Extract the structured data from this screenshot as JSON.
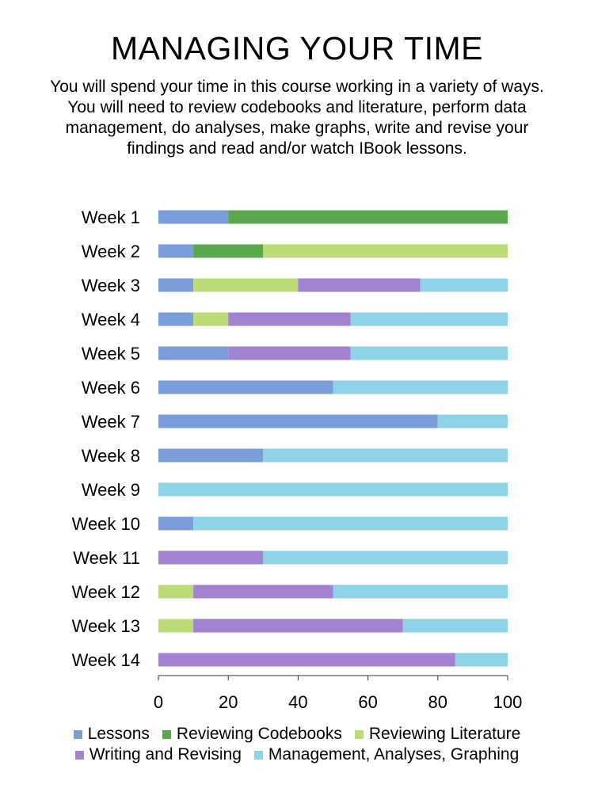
{
  "title": "MANAGING YOUR TIME",
  "subtitle": "You will spend your time in this course working in a variety of ways. You will need to review codebooks and literature, perform data management, do analyses, make graphs, write and revise your findings and read and/or watch  IBook lessons.",
  "chart_data": {
    "type": "bar",
    "orientation": "horizontal",
    "stacked": true,
    "categories": [
      "Week 1",
      "Week 2",
      "Week 3",
      "Week 4",
      "Week 5",
      "Week 6",
      "Week 7",
      "Week 8",
      "Week 9",
      "Week 10",
      "Week 11",
      "Week 12",
      "Week 13",
      "Week 14"
    ],
    "series": [
      {
        "name": "Lessons",
        "color": "#7b9edb",
        "values": [
          20,
          10,
          10,
          10,
          20,
          50,
          80,
          30,
          0,
          10,
          0,
          0,
          0,
          0
        ]
      },
      {
        "name": "Reviewing Codebooks",
        "color": "#5aa84e",
        "values": [
          80,
          20,
          0,
          0,
          0,
          0,
          0,
          0,
          0,
          0,
          0,
          0,
          0,
          0
        ]
      },
      {
        "name": "Reviewing Literature",
        "color": "#bcdc78",
        "values": [
          0,
          70,
          30,
          10,
          0,
          0,
          0,
          0,
          0,
          0,
          0,
          10,
          10,
          0
        ]
      },
      {
        "name": "Writing and Revising",
        "color": "#a382cf",
        "values": [
          0,
          0,
          35,
          35,
          35,
          0,
          0,
          0,
          0,
          0,
          30,
          40,
          60,
          85
        ]
      },
      {
        "name": "Management, Analyses, Graphing",
        "color": "#8fd3e8",
        "values": [
          0,
          0,
          25,
          45,
          45,
          50,
          20,
          70,
          100,
          90,
          70,
          50,
          30,
          15
        ]
      }
    ],
    "xlim": [
      0,
      100
    ],
    "xticks": [
      "0",
      "20",
      "40",
      "60",
      "80",
      "100"
    ],
    "grid": false,
    "legend_position": "bottom"
  }
}
